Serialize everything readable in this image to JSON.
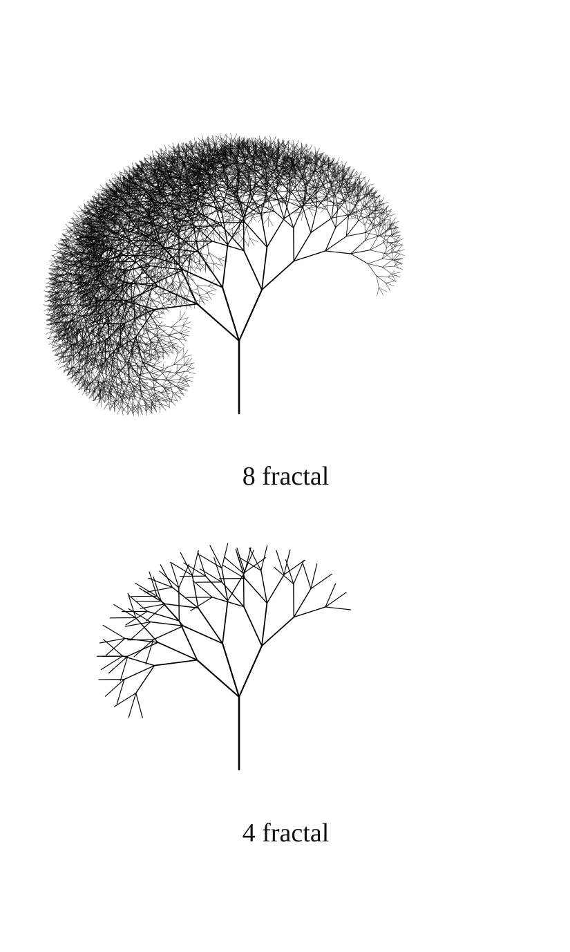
{
  "figures": [
    {
      "depth": 8,
      "caption": "8 fractal"
    },
    {
      "depth": 4,
      "caption": "4 fractal"
    }
  ],
  "colors": {
    "background": "#ffffff",
    "branch": "#000000",
    "caption": "#111111"
  }
}
